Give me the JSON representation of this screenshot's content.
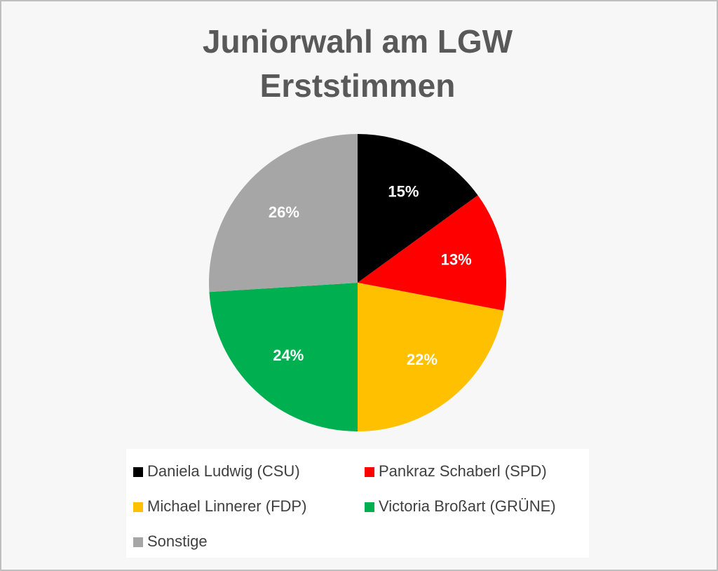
{
  "chart_data": {
    "type": "pie",
    "title": [
      "Juniorwahl am LGW",
      "Erststimmen"
    ],
    "categories": [
      "Daniela Ludwig (CSU)",
      "Pankraz Schaberl (SPD)",
      "Michael Linnerer (FDP)",
      "Victoria Broßart (GRÜNE)",
      "Sonstige"
    ],
    "values": [
      15,
      13,
      22,
      24,
      26
    ],
    "value_labels": [
      "15%",
      "13%",
      "22%",
      "24%",
      "26%"
    ],
    "colors": [
      "#000000",
      "#ff0000",
      "#ffc000",
      "#00b050",
      "#a6a6a6"
    ],
    "legend": "bottom"
  }
}
